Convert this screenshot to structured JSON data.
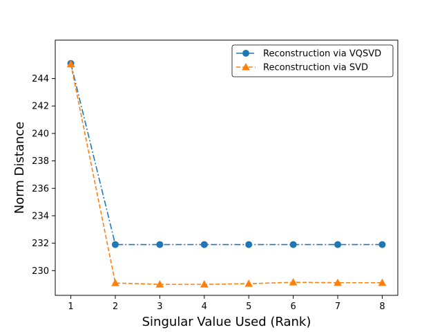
{
  "chart_data": {
    "type": "line",
    "title": "",
    "xlabel": "Singular Value Used (Rank)",
    "ylabel": "Norm Distance",
    "x": [
      1,
      2,
      3,
      4,
      5,
      6,
      7,
      8
    ],
    "xticks": [
      1,
      2,
      3,
      4,
      5,
      6,
      7,
      8
    ],
    "yticks": [
      230,
      232,
      234,
      236,
      238,
      240,
      242,
      244
    ],
    "xlim": [
      0.65,
      8.35
    ],
    "ylim": [
      228.2,
      246.8
    ],
    "grid": false,
    "legend_position": "top-right",
    "series": [
      {
        "name": "Reconstruction via VQSVD",
        "color": "#1f77b4",
        "marker": "circle",
        "line_style": "dash-dot",
        "values": [
          245.1,
          231.9,
          231.9,
          231.9,
          231.9,
          231.9,
          231.9,
          231.9
        ]
      },
      {
        "name": "Reconstruction via SVD",
        "color": "#ff7f0e",
        "marker": "triangle",
        "line_style": "dashed",
        "values": [
          245.05,
          229.1,
          229.0,
          229.0,
          229.05,
          229.15,
          229.12,
          229.12
        ]
      }
    ]
  }
}
